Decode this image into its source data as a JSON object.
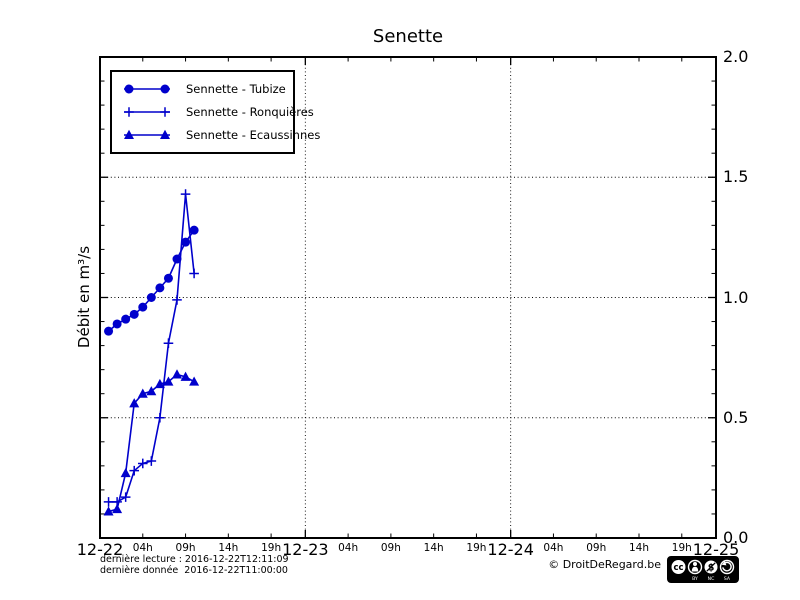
{
  "chart_data": {
    "type": "line",
    "title": "Senette",
    "ylabel": "Débit en m³/s",
    "ylim": [
      0,
      2
    ],
    "ytick_labels": [
      "2.0",
      "1.5",
      "1.0",
      "0.5",
      "0.0"
    ],
    "ytick_values": [
      2.0,
      1.5,
      1.0,
      0.5,
      0.0
    ],
    "y_minor_step": 0.1,
    "x_axis": {
      "day_ticks": [
        {
          "label": "12-22",
          "day": 0
        },
        {
          "label": "12-23",
          "day": 1
        },
        {
          "label": "12-24",
          "day": 2
        },
        {
          "label": "12-25",
          "day": 3
        }
      ],
      "hour_tick_labels": [
        "04h",
        "09h",
        "14h",
        "19h"
      ],
      "hour_tick_day_fractions": [
        5,
        10,
        15,
        20
      ],
      "days_with_hour_ticks": [
        0,
        1,
        2
      ]
    },
    "grid": {
      "style": "dotted",
      "horizontal_at": [
        0.5,
        1.0,
        1.5
      ],
      "vertical_at_days": [
        1,
        2
      ]
    },
    "x_date": "2016-12-22",
    "x_hours": [
      1,
      2,
      3,
      4,
      5,
      6,
      7,
      8,
      9,
      10,
      11
    ],
    "series": [
      {
        "name": "Sennette - Tubize",
        "marker": "circle",
        "color": "#0000cc",
        "values": [
          0.86,
          0.89,
          0.91,
          0.93,
          0.96,
          1.0,
          1.04,
          1.08,
          1.16,
          1.23,
          1.28
        ]
      },
      {
        "name": "Sennette - Ronquières",
        "marker": "plus",
        "color": "#0000cc",
        "values": [
          0.15,
          0.15,
          0.17,
          0.28,
          0.31,
          0.32,
          0.5,
          0.81,
          0.99,
          1.43,
          1.1
        ]
      },
      {
        "name": "Sennette - Ecaussinnes",
        "marker": "triangle",
        "color": "#0000cc",
        "values": [
          0.11,
          0.12,
          0.27,
          0.56,
          0.6,
          0.61,
          0.64,
          0.65,
          0.68,
          0.67,
          0.65
        ]
      }
    ],
    "legend_position": "upper-left"
  },
  "footer": {
    "last_read": "dernière lecture : 2016-12-22T12:11:09",
    "last_data": "dernière donnée  2016-12-22T11:00:00",
    "copyright": "© DroitDeRegard.be",
    "cc_circle1": "cc",
    "cc_labels": [
      "BY",
      "NC",
      "SA"
    ]
  },
  "colors": {
    "series_blue": "#0000cc",
    "grid": "#000000",
    "text": "#000000",
    "background": "#ffffff"
  }
}
